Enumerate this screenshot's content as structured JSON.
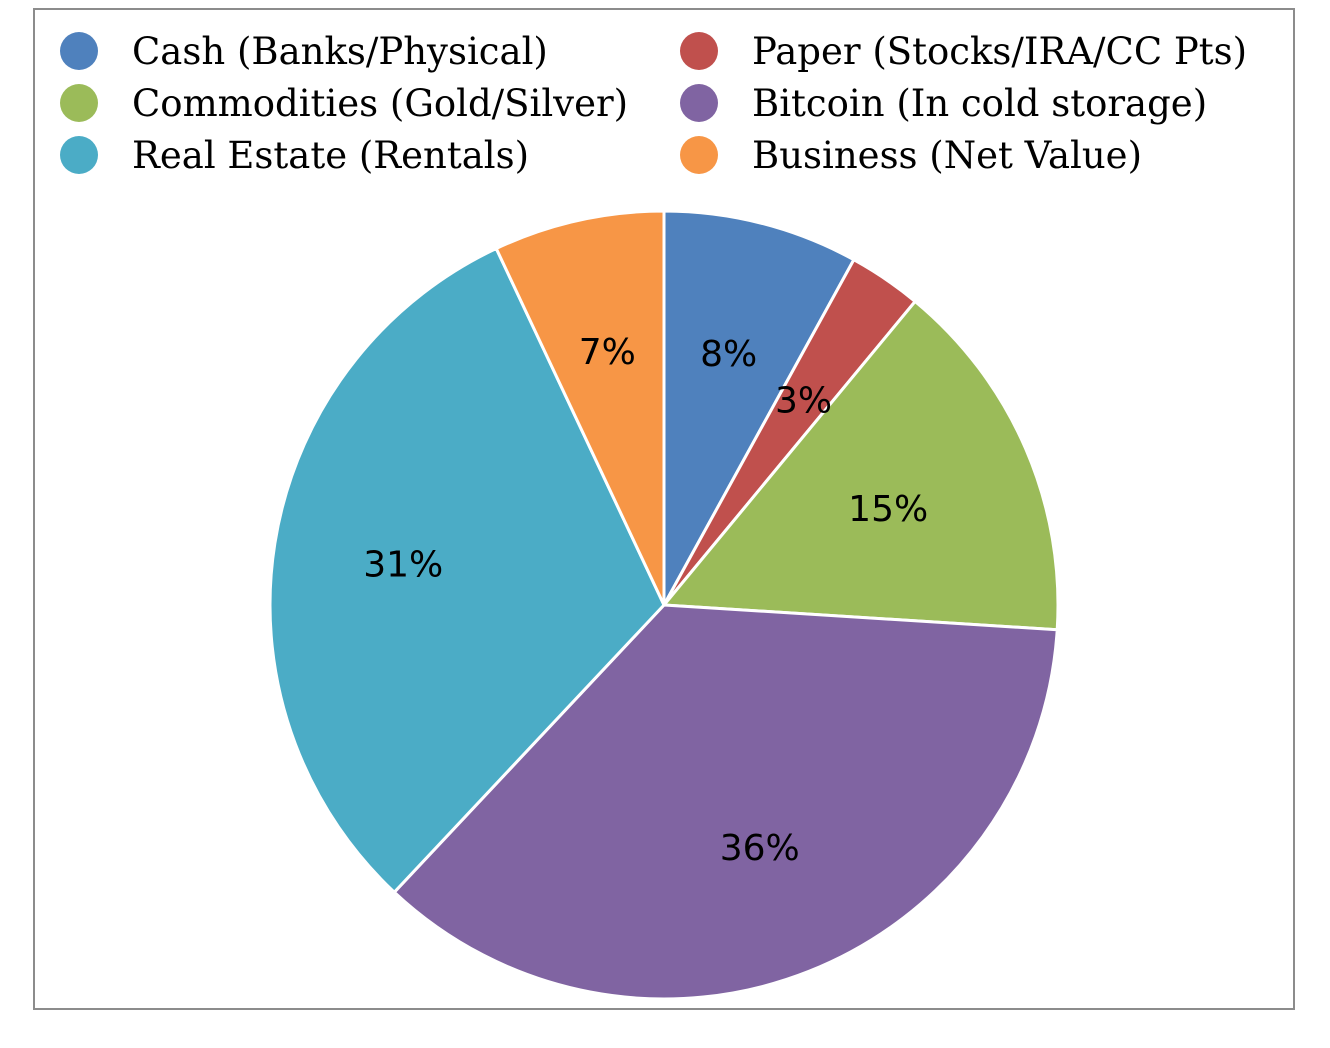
{
  "chart_data": {
    "type": "pie",
    "title": "",
    "legend_position": "top",
    "categories": [
      "Cash (Banks/Physical)",
      "Paper (Stocks/IRA/CC Pts)",
      "Commodities (Gold/Silver)",
      "Bitcoin (In cold storage)",
      "Real Estate (Rentals)",
      "Business (Net Value)"
    ],
    "values": [
      8,
      3,
      15,
      36,
      31,
      7
    ],
    "data_labels": [
      "8%",
      "3%",
      "15%",
      "36%",
      "31%",
      "7%"
    ],
    "colors": [
      "#4F81BD",
      "#C0504D",
      "#9BBB59",
      "#8064A2",
      "#4BACC6",
      "#F79646"
    ]
  }
}
